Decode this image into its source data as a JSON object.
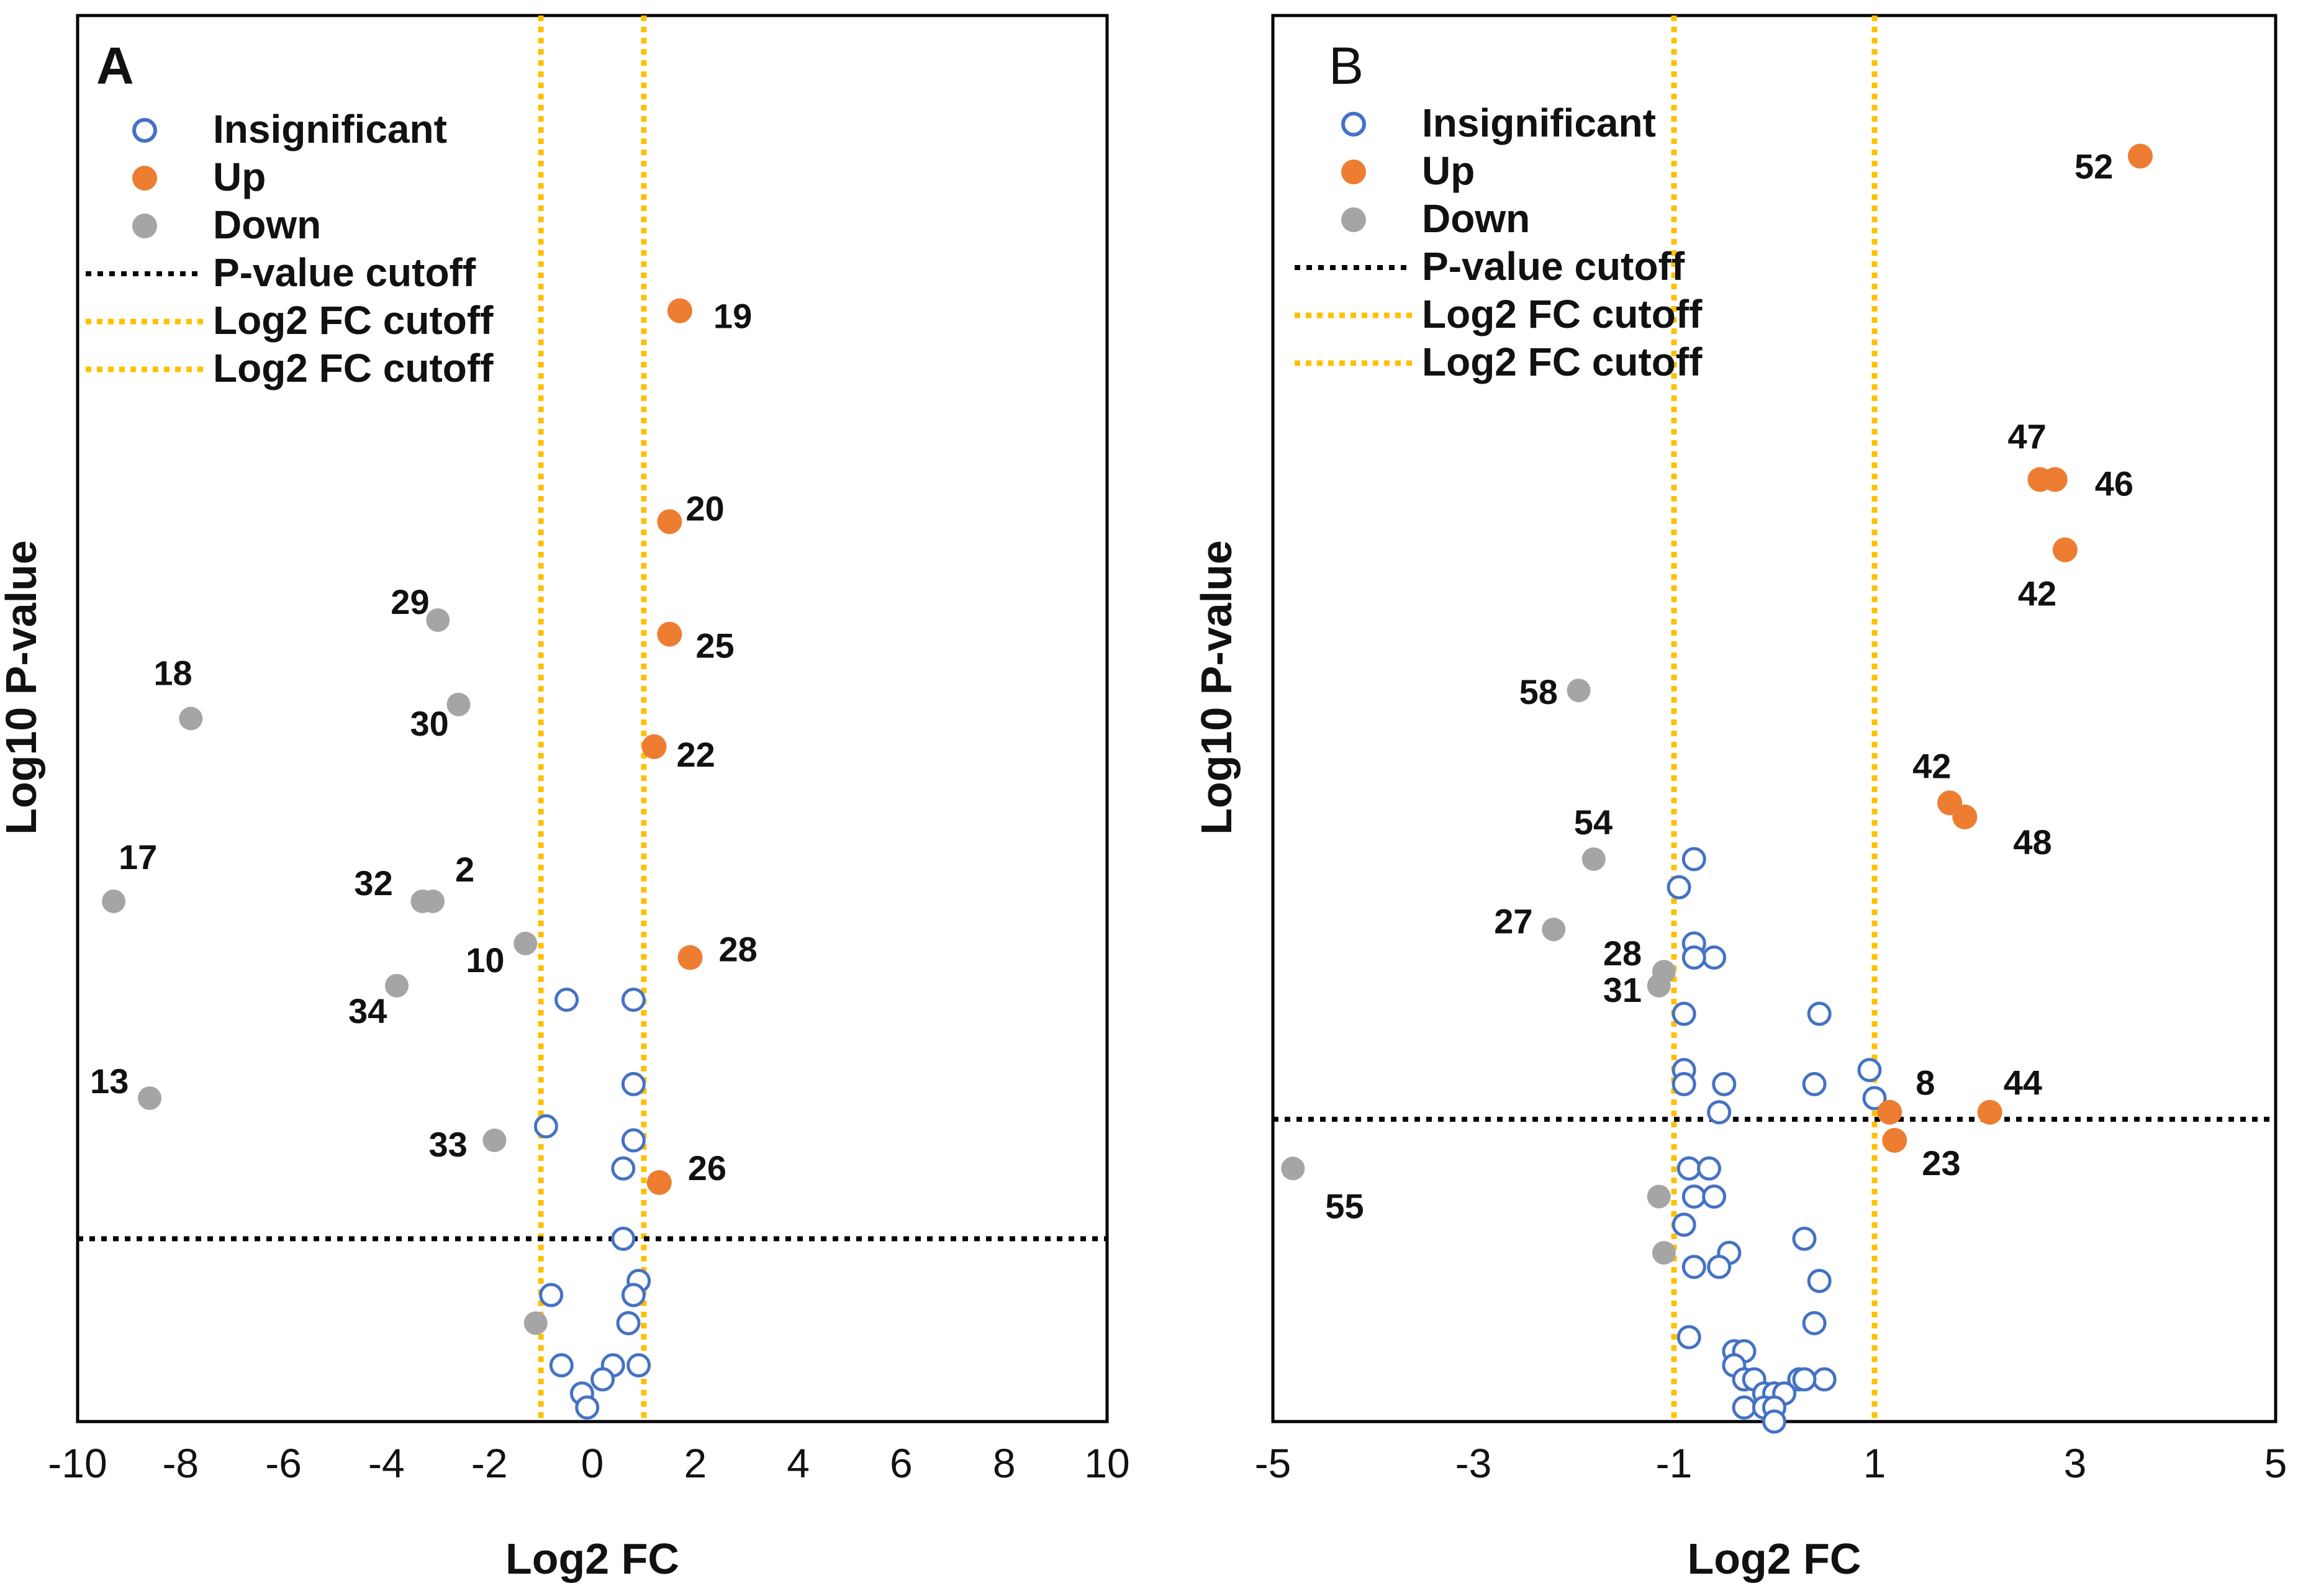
{
  "chart_data": [
    {
      "type": "scatter",
      "panel": "A",
      "xlabel": "Log2 FC",
      "ylabel": "Log10 P-value",
      "xlim": [
        -10,
        10
      ],
      "ylim": [
        0,
        1
      ],
      "x_ticks": [
        -10,
        -8,
        -6,
        -4,
        -2,
        0,
        2,
        4,
        6,
        8,
        10
      ],
      "p_value_cutoff": 0.13,
      "log2fc_cutoffs": [
        -1,
        1
      ],
      "legend": [
        "Insignificant",
        "Up",
        "Down",
        "P-value cutoff",
        "Log2 FC cutoff",
        "Log2 FC cutoff"
      ],
      "colors": {
        "insignificant": "#4472c4",
        "up": "#ed7d31",
        "down": "#a5a5a5",
        "pcut": "#000000",
        "fccut": "#ffc000"
      },
      "up": [
        {
          "x": 1.7,
          "y": 0.79,
          "label": "19"
        },
        {
          "x": 1.5,
          "y": 0.64,
          "label": "20"
        },
        {
          "x": 1.5,
          "y": 0.56,
          "label": "25"
        },
        {
          "x": 1.2,
          "y": 0.48,
          "label": "22"
        },
        {
          "x": 1.9,
          "y": 0.33,
          "label": "28"
        },
        {
          "x": 1.3,
          "y": 0.17,
          "label": "26"
        }
      ],
      "down": [
        {
          "x": -3.0,
          "y": 0.57,
          "label": "29"
        },
        {
          "x": -7.8,
          "y": 0.5,
          "label": "18"
        },
        {
          "x": -2.6,
          "y": 0.51,
          "label": "30"
        },
        {
          "x": -9.3,
          "y": 0.37,
          "label": "17"
        },
        {
          "x": -3.3,
          "y": 0.37,
          "label": "32"
        },
        {
          "x": -3.1,
          "y": 0.37,
          "label": "2"
        },
        {
          "x": -1.3,
          "y": 0.34,
          "label": "10"
        },
        {
          "x": -3.8,
          "y": 0.31,
          "label": "34"
        },
        {
          "x": -8.6,
          "y": 0.23,
          "label": "13"
        },
        {
          "x": -1.9,
          "y": 0.2,
          "label": "33"
        },
        {
          "x": -1.1,
          "y": 0.07,
          "label": ""
        }
      ],
      "insignificant": [
        {
          "x": -0.5,
          "y": 0.3
        },
        {
          "x": 0.8,
          "y": 0.3
        },
        {
          "x": 0.8,
          "y": 0.24
        },
        {
          "x": -0.9,
          "y": 0.21
        },
        {
          "x": 0.8,
          "y": 0.2
        },
        {
          "x": 0.6,
          "y": 0.18
        },
        {
          "x": 0.6,
          "y": 0.13
        },
        {
          "x": 0.9,
          "y": 0.1
        },
        {
          "x": 0.8,
          "y": 0.09
        },
        {
          "x": -0.8,
          "y": 0.09
        },
        {
          "x": 0.7,
          "y": 0.07
        },
        {
          "x": -0.6,
          "y": 0.04
        },
        {
          "x": 0.9,
          "y": 0.04
        },
        {
          "x": 0.4,
          "y": 0.04
        },
        {
          "x": 0.2,
          "y": 0.03
        },
        {
          "x": -0.2,
          "y": 0.02
        },
        {
          "x": -0.1,
          "y": 0.01
        }
      ]
    },
    {
      "type": "scatter",
      "panel": "B",
      "xlabel": "Log2 FC",
      "ylabel": "Log10 P-value",
      "xlim": [
        -5,
        5
      ],
      "ylim": [
        0,
        1
      ],
      "x_ticks": [
        -5,
        -3,
        -1,
        1,
        3,
        5
      ],
      "p_value_cutoff": 0.215,
      "log2fc_cutoffs": [
        -1,
        1
      ],
      "legend": [
        "Insignificant",
        "Up",
        "Down",
        "P-value cutoff",
        "Log2 FC cutoff",
        "Log2 FC cutoff"
      ],
      "colors": {
        "insignificant": "#4472c4",
        "up": "#ed7d31",
        "down": "#a5a5a5",
        "pcut": "#000000",
        "fccut": "#ffc000"
      },
      "up": [
        {
          "x": 3.65,
          "y": 0.9,
          "label": "52"
        },
        {
          "x": 2.65,
          "y": 0.67,
          "label": "47"
        },
        {
          "x": 2.8,
          "y": 0.67,
          "label": "46"
        },
        {
          "x": 2.9,
          "y": 0.62,
          "label": "42"
        },
        {
          "x": 1.75,
          "y": 0.44,
          "label": "42"
        },
        {
          "x": 1.9,
          "y": 0.43,
          "label": "48"
        },
        {
          "x": 1.15,
          "y": 0.22,
          "label": "8"
        },
        {
          "x": 2.15,
          "y": 0.22,
          "label": "44"
        },
        {
          "x": 1.2,
          "y": 0.2,
          "label": "23"
        }
      ],
      "down": [
        {
          "x": -1.95,
          "y": 0.52,
          "label": "58"
        },
        {
          "x": -1.8,
          "y": 0.4,
          "label": "54"
        },
        {
          "x": -2.2,
          "y": 0.35,
          "label": "27"
        },
        {
          "x": -1.1,
          "y": 0.32,
          "label": "28"
        },
        {
          "x": -1.15,
          "y": 0.31,
          "label": "31"
        },
        {
          "x": -4.8,
          "y": 0.18,
          "label": "55"
        },
        {
          "x": -1.15,
          "y": 0.16,
          "label": ""
        },
        {
          "x": -1.1,
          "y": 0.12,
          "label": ""
        }
      ],
      "insignificant": [
        {
          "x": -0.8,
          "y": 0.4
        },
        {
          "x": -0.95,
          "y": 0.38
        },
        {
          "x": -0.8,
          "y": 0.34
        },
        {
          "x": -0.6,
          "y": 0.33
        },
        {
          "x": -0.8,
          "y": 0.33
        },
        {
          "x": -0.9,
          "y": 0.29
        },
        {
          "x": 0.45,
          "y": 0.29
        },
        {
          "x": -0.9,
          "y": 0.25
        },
        {
          "x": 0.95,
          "y": 0.25
        },
        {
          "x": -0.9,
          "y": 0.24
        },
        {
          "x": -0.5,
          "y": 0.24
        },
        {
          "x": 0.4,
          "y": 0.24
        },
        {
          "x": 1.0,
          "y": 0.23
        },
        {
          "x": -0.55,
          "y": 0.22
        },
        {
          "x": -0.85,
          "y": 0.18
        },
        {
          "x": -0.65,
          "y": 0.18
        },
        {
          "x": -0.8,
          "y": 0.16
        },
        {
          "x": -0.6,
          "y": 0.16
        },
        {
          "x": -0.9,
          "y": 0.14
        },
        {
          "x": 0.3,
          "y": 0.13
        },
        {
          "x": -0.45,
          "y": 0.12
        },
        {
          "x": -0.8,
          "y": 0.11
        },
        {
          "x": -0.55,
          "y": 0.11
        },
        {
          "x": 0.45,
          "y": 0.1
        },
        {
          "x": 0.4,
          "y": 0.07
        },
        {
          "x": -0.85,
          "y": 0.06
        },
        {
          "x": -0.4,
          "y": 0.05
        },
        {
          "x": -0.3,
          "y": 0.05
        },
        {
          "x": -0.4,
          "y": 0.04
        },
        {
          "x": -0.3,
          "y": 0.03
        },
        {
          "x": -0.2,
          "y": 0.03
        },
        {
          "x": 0.25,
          "y": 0.03
        },
        {
          "x": 0.5,
          "y": 0.03
        },
        {
          "x": 0.3,
          "y": 0.03
        },
        {
          "x": -0.1,
          "y": 0.02
        },
        {
          "x": 0.0,
          "y": 0.02
        },
        {
          "x": 0.1,
          "y": 0.02
        },
        {
          "x": -0.3,
          "y": 0.01
        },
        {
          "x": -0.1,
          "y": 0.01
        },
        {
          "x": 0.0,
          "y": 0.01
        },
        {
          "x": 0.0,
          "y": 0.0
        }
      ]
    }
  ]
}
